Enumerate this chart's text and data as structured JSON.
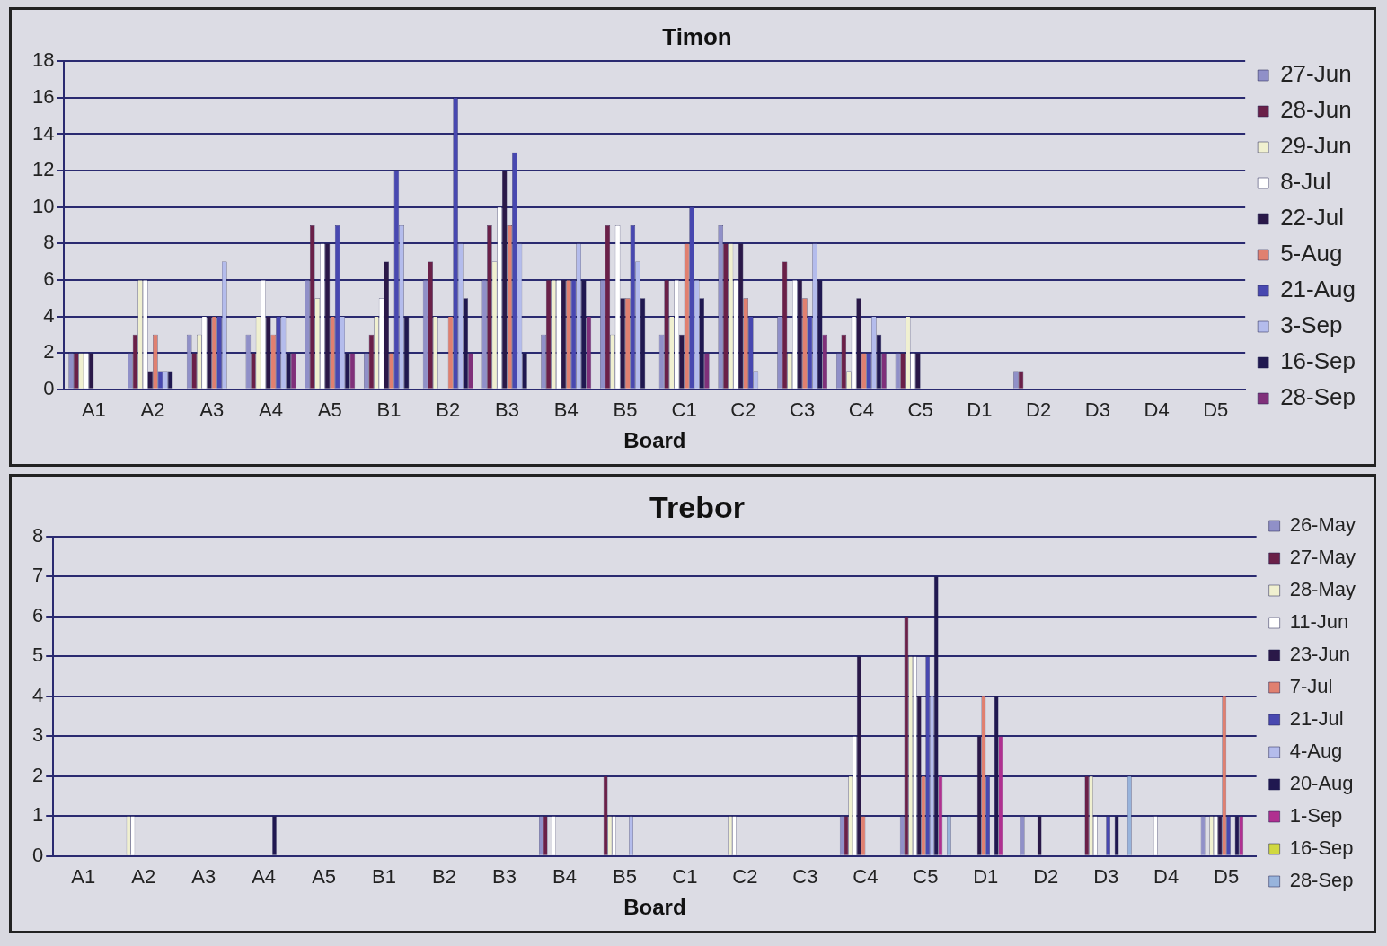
{
  "chart_data": [
    {
      "type": "bar",
      "title": "Timon",
      "xlabel": "Board",
      "categories": [
        "A1",
        "A2",
        "A3",
        "A4",
        "A5",
        "B1",
        "B2",
        "B3",
        "B4",
        "B5",
        "C1",
        "C2",
        "C3",
        "C4",
        "C5",
        "D1",
        "D2",
        "D3",
        "D4",
        "D5"
      ],
      "ylim": [
        0,
        18
      ],
      "yticks": [
        0,
        2,
        4,
        6,
        8,
        10,
        12,
        14,
        16,
        18
      ],
      "grid": "y",
      "legend": "right",
      "series": [
        {
          "name": "27-Jun",
          "color": "#9090c8",
          "values": [
            2,
            2,
            3,
            3,
            6,
            2,
            6,
            6,
            3,
            6,
            3,
            9,
            4,
            2,
            2,
            0,
            1,
            0,
            0,
            0
          ]
        },
        {
          "name": "28-Jun",
          "color": "#6a2048",
          "values": [
            2,
            3,
            2,
            2,
            9,
            3,
            7,
            9,
            6,
            9,
            6,
            8,
            7,
            3,
            2,
            0,
            1,
            0,
            0,
            0
          ]
        },
        {
          "name": "29-Jun",
          "color": "#f0f0d0",
          "values": [
            2,
            6,
            3,
            4,
            5,
            4,
            4,
            7,
            6,
            3,
            4,
            8,
            2,
            1,
            4,
            0,
            0,
            0,
            0,
            0
          ]
        },
        {
          "name": "8-Jul",
          "color": "#ffffff",
          "values": [
            2,
            6,
            4,
            6,
            8,
            5,
            0,
            10,
            6,
            9,
            6,
            6,
            6,
            4,
            2,
            0,
            0,
            0,
            0,
            0
          ]
        },
        {
          "name": "22-Jul",
          "color": "#2a1848",
          "values": [
            2,
            1,
            4,
            4,
            8,
            7,
            0,
            12,
            6,
            5,
            3,
            8,
            6,
            5,
            2,
            0,
            0,
            0,
            0,
            0
          ]
        },
        {
          "name": "5-Aug",
          "color": "#e08070",
          "values": [
            0,
            3,
            4,
            3,
            4,
            2,
            4,
            9,
            6,
            5,
            8,
            5,
            5,
            2,
            0,
            0,
            0,
            0,
            0,
            0
          ]
        },
        {
          "name": "21-Aug",
          "color": "#4848b0",
          "values": [
            0,
            1,
            4,
            4,
            9,
            12,
            16,
            13,
            6,
            9,
            10,
            4,
            4,
            2,
            0,
            0,
            0,
            0,
            0,
            0
          ]
        },
        {
          "name": "3-Sep",
          "color": "#b4bcec",
          "values": [
            0,
            1,
            7,
            4,
            4,
            9,
            8,
            8,
            8,
            7,
            6,
            1,
            8,
            4,
            0,
            0,
            0,
            0,
            0,
            0
          ]
        },
        {
          "name": "16-Sep",
          "color": "#201850",
          "values": [
            0,
            1,
            0,
            2,
            2,
            4,
            5,
            2,
            6,
            5,
            5,
            0,
            6,
            3,
            0,
            0,
            0,
            0,
            0,
            0
          ]
        },
        {
          "name": "28-Sep",
          "color": "#80307a",
          "values": [
            0,
            0,
            0,
            2,
            2,
            0,
            2,
            0,
            4,
            0,
            2,
            0,
            3,
            2,
            0,
            0,
            0,
            0,
            0,
            0
          ]
        }
      ]
    },
    {
      "type": "bar",
      "title": "Trebor",
      "xlabel": "Board",
      "categories": [
        "A1",
        "A2",
        "A3",
        "A4",
        "A5",
        "B1",
        "B2",
        "B3",
        "B4",
        "B5",
        "C1",
        "C2",
        "C3",
        "C4",
        "C5",
        "D1",
        "D2",
        "D3",
        "D4",
        "D5"
      ],
      "ylim": [
        0,
        8
      ],
      "yticks": [
        0,
        1,
        2,
        3,
        4,
        5,
        6,
        7,
        8
      ],
      "grid": "y",
      "legend": "right",
      "series": [
        {
          "name": "26-May",
          "color": "#9090c8",
          "values": [
            0,
            0,
            0,
            0,
            0,
            0,
            0,
            0,
            1,
            0,
            0,
            0,
            0,
            1,
            1,
            0,
            1,
            0,
            0,
            1
          ]
        },
        {
          "name": "27-May",
          "color": "#6a2048",
          "values": [
            0,
            0,
            0,
            0,
            0,
            0,
            0,
            0,
            1,
            2,
            0,
            0,
            0,
            1,
            6,
            0,
            0,
            2,
            0,
            0
          ]
        },
        {
          "name": "28-May",
          "color": "#f0f0d0",
          "values": [
            0,
            1,
            0,
            0,
            0,
            0,
            0,
            0,
            0,
            1,
            0,
            1,
            0,
            2,
            5,
            0,
            0,
            2,
            0,
            1
          ]
        },
        {
          "name": "11-Jun",
          "color": "#ffffff",
          "values": [
            0,
            1,
            0,
            0,
            0,
            0,
            0,
            0,
            1,
            1,
            0,
            1,
            0,
            3,
            5,
            0,
            0,
            1,
            1,
            1
          ]
        },
        {
          "name": "23-Jun",
          "color": "#2a1848",
          "values": [
            0,
            0,
            0,
            0,
            0,
            0,
            0,
            0,
            0,
            0,
            0,
            0,
            0,
            5,
            4,
            3,
            1,
            0,
            0,
            1
          ]
        },
        {
          "name": "7-Jul",
          "color": "#e08070",
          "values": [
            0,
            0,
            0,
            0,
            0,
            0,
            0,
            0,
            0,
            0,
            0,
            0,
            0,
            1,
            2,
            4,
            0,
            0,
            0,
            4
          ]
        },
        {
          "name": "21-Jul",
          "color": "#4848b0",
          "values": [
            0,
            0,
            0,
            0,
            0,
            0,
            0,
            0,
            0,
            0,
            0,
            0,
            0,
            0,
            5,
            2,
            0,
            1,
            0,
            1
          ]
        },
        {
          "name": "4-Aug",
          "color": "#b4bcec",
          "values": [
            0,
            0,
            0,
            0,
            0,
            0,
            0,
            0,
            0,
            1,
            0,
            0,
            0,
            0,
            4,
            0,
            0,
            0,
            0,
            0
          ]
        },
        {
          "name": "20-Aug",
          "color": "#201850",
          "values": [
            0,
            0,
            0,
            1,
            0,
            0,
            0,
            0,
            0,
            0,
            0,
            0,
            0,
            0,
            7,
            4,
            0,
            1,
            0,
            1
          ]
        },
        {
          "name": "1-Sep",
          "color": "#b03090",
          "values": [
            0,
            0,
            0,
            0,
            0,
            0,
            0,
            0,
            0,
            0,
            0,
            0,
            0,
            0,
            2,
            3,
            0,
            0,
            0,
            1
          ]
        },
        {
          "name": "16-Sep",
          "color": "#d0d840",
          "values": [
            0,
            0,
            0,
            0,
            0,
            0,
            0,
            0,
            0,
            0,
            0,
            0,
            0,
            0,
            0,
            0,
            0,
            0,
            0,
            0
          ]
        },
        {
          "name": "28-Sep",
          "color": "#98b4dc",
          "values": [
            0,
            0,
            0,
            0,
            0,
            0,
            0,
            0,
            0,
            0,
            0,
            0,
            0,
            0,
            1,
            0,
            0,
            2,
            0,
            0
          ]
        }
      ]
    }
  ]
}
